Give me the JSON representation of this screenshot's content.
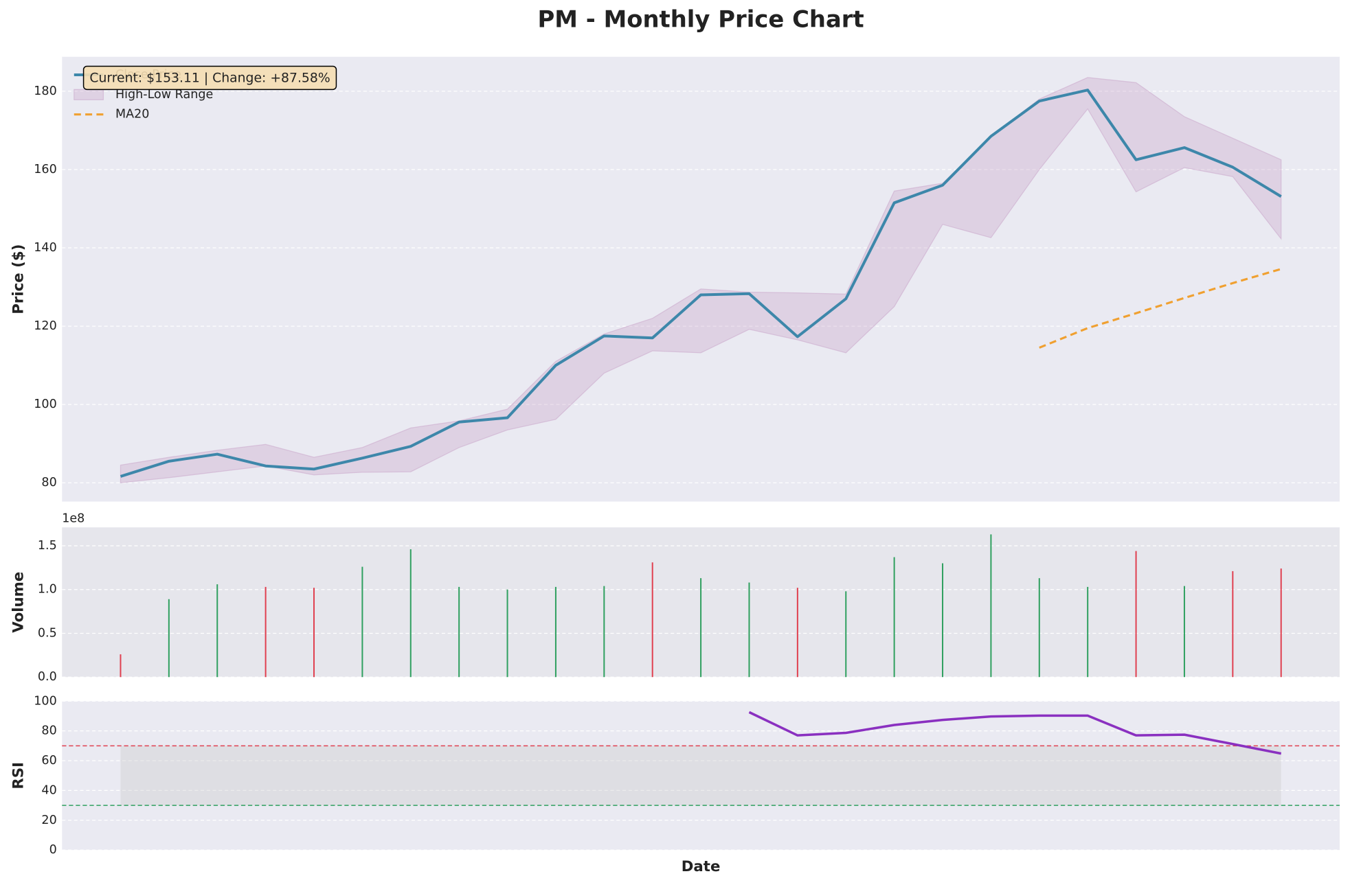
{
  "chart_data": [
    {
      "type": "line",
      "title": "PM - Monthly Price Chart",
      "ylabel": "Price ($)",
      "categories": [
        null,
        null,
        null,
        null,
        null,
        null,
        null,
        null,
        null,
        null,
        null,
        null,
        null,
        null,
        null,
        null,
        null,
        null,
        null,
        null,
        null,
        null,
        null,
        null,
        null
      ],
      "ylim": [
        75.2,
        188.8
      ],
      "yticks": [
        80,
        100,
        120,
        140,
        160,
        180
      ],
      "grid": true,
      "legend": "upper left",
      "annotation": "Current: $153.11 | Change: +87.58%",
      "series": [
        {
          "name": "Close Price",
          "color": "#3d87aa",
          "values": [
            81.62,
            85.5,
            87.3,
            84.3,
            83.5,
            86.3,
            89.3,
            95.5,
            96.6,
            110,
            117.5,
            117,
            128,
            128.3,
            117.3,
            127,
            151.5,
            156,
            168.5,
            177.5,
            180.3,
            162.5,
            165.6,
            160.6,
            153.11
          ]
        },
        {
          "name": "High-Low Range",
          "type": "band",
          "color": "#c8a2c8",
          "high": [
            84.5,
            86.5,
            88.3,
            89.8,
            86.5,
            89,
            94,
            95.8,
            98.8,
            111,
            118,
            122,
            129.5,
            128.7,
            128.5,
            128.2,
            154.5,
            156.5,
            168.5,
            178,
            183.5,
            182.2,
            173.5,
            168,
            162.5
          ],
          "low": [
            80,
            81.3,
            82.8,
            84.3,
            82,
            82.7,
            82.8,
            89,
            93.5,
            96.2,
            108,
            113.7,
            113.2,
            119.2,
            116.5,
            113.2,
            125,
            146,
            142.6,
            160,
            175.5,
            154.3,
            160.5,
            158.2,
            142.3
          ]
        },
        {
          "name": "MA20",
          "color": "#f0a030",
          "dashed": true,
          "values": [
            null,
            null,
            null,
            null,
            null,
            null,
            null,
            null,
            null,
            null,
            null,
            null,
            null,
            null,
            null,
            null,
            null,
            null,
            null,
            114.5,
            119.5,
            123.3,
            127.2,
            131,
            134.6
          ]
        }
      ]
    },
    {
      "type": "bar",
      "ylabel": "Volume",
      "offset_label": "1e8",
      "categories": [
        null,
        null,
        null,
        null,
        null,
        null,
        null,
        null,
        null,
        null,
        null,
        null,
        null,
        null,
        null,
        null,
        null,
        null,
        null,
        null,
        null,
        null,
        null,
        null,
        null
      ],
      "ylim": [
        0,
        1.71
      ],
      "yticks": [
        {
          "value": 0,
          "label": "0.0"
        },
        0.5,
        {
          "value": 1,
          "label": "1.0"
        },
        1.5
      ],
      "grid": true,
      "values": [
        0.26,
        0.89,
        1.06,
        1.03,
        1.02,
        1.26,
        1.46,
        1.03,
        1.0,
        1.03,
        1.04,
        1.31,
        1.13,
        1.08,
        1.02,
        0.98,
        1.37,
        1.3,
        1.63,
        1.13,
        1.03,
        1.44,
        1.04,
        1.21,
        1.24
      ],
      "colors": [
        "#e04050",
        "#30a060",
        "#30a060",
        "#e04050",
        "#e04050",
        "#30a060",
        "#30a060",
        "#30a060",
        "#30a060",
        "#30a060",
        "#30a060",
        "#e04050",
        "#30a060",
        "#30a060",
        "#e04050",
        "#30a060",
        "#30a060",
        "#30a060",
        "#30a060",
        "#30a060",
        "#30a060",
        "#e04050",
        "#30a060",
        "#e04050",
        "#e04050"
      ]
    },
    {
      "type": "rsi",
      "ylabel": "RSI",
      "xlabel": "Date",
      "categories": [
        null,
        null,
        null,
        null,
        null,
        null,
        null,
        null,
        null,
        null,
        null,
        null,
        null,
        null,
        null,
        null,
        null,
        null,
        null,
        null,
        null,
        null,
        null,
        null,
        null
      ],
      "ylim": [
        0,
        100
      ],
      "yticks": [
        0,
        20,
        40,
        60,
        80,
        100
      ],
      "grid": true,
      "color": "#8a30c0",
      "overbought": 70,
      "oversold": 30,
      "values": [
        null,
        null,
        null,
        null,
        null,
        null,
        null,
        null,
        null,
        null,
        null,
        null,
        null,
        92.6,
        77,
        78.7,
        84,
        87.4,
        89.7,
        90.3,
        90.3,
        77,
        77.5,
        71.2,
        64.8
      ]
    }
  ]
}
